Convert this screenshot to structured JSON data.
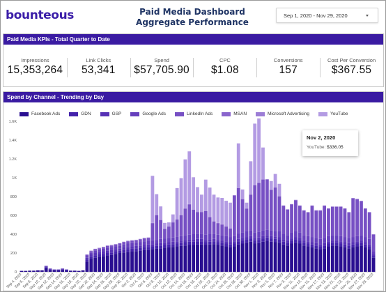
{
  "header": {
    "logo": "bounteous",
    "title_line1": "Paid Media Dashboard",
    "title_line2": "Aggregate Performance",
    "date_range": "Sep 1, 2020 - Nov 29, 2020"
  },
  "kpis": {
    "section_title": "Paid Media KPIs - Total Quarter to Date",
    "items": [
      {
        "label": "Impressions",
        "value": "15,353,264"
      },
      {
        "label": "Link Clicks",
        "value": "53,341"
      },
      {
        "label": "Spend",
        "value": "$57,705.90"
      },
      {
        "label": "CPC",
        "value": "$1.08"
      },
      {
        "label": "Conversions",
        "value": "157"
      },
      {
        "label": "Cost Per Conversion",
        "value": "$367.55"
      }
    ]
  },
  "chart_section_title": "Spend by Channel - Trending by Day",
  "tooltip": {
    "date": "Nov 2, 2020",
    "series": "YouTube:",
    "value": "$336.05"
  },
  "colors": {
    "brand": "#3a1ba2",
    "series": [
      "#2a0f91",
      "#4423ab",
      "#5732b6",
      "#6640bd",
      "#7750c4",
      "#8a65cd",
      "#9c7dd6",
      "#b39be3"
    ]
  },
  "chart_data": {
    "type": "bar",
    "stacked": true,
    "title": "",
    "xlabel": "",
    "ylabel": "",
    "ylim": [
      0,
      1600
    ],
    "y_ticks": [
      0,
      200,
      400,
      600,
      800,
      1000,
      1200,
      1400,
      1600
    ],
    "y_tick_labels": [
      "0",
      "200",
      "400",
      "600",
      "800",
      "1K",
      "1.2K",
      "1.4K",
      "1.6K"
    ],
    "legend_position": "top",
    "grid": false,
    "categories": [
      "Sep 4, 2020",
      "Sep 5, 2020",
      "Sep 6, 2020",
      "Sep 7, 2020",
      "Sep 8, 2020",
      "Sep 9, 2020",
      "Sep 10, 2020",
      "Sep 11, 2020",
      "Sep 12, 2020",
      "Sep 13, 2020",
      "Sep 14, 2020",
      "Sep 15, 2020",
      "Sep 16, 2020",
      "Sep 17, 2020",
      "Sep 18, 2020",
      "Sep 19, 2020",
      "Sep 20, 2020",
      "Sep 21, 2020",
      "Sep 22, 2020",
      "Sep 23, 2020",
      "Sep 24, 2020",
      "Sep 25, 2020",
      "Sep 26, 2020",
      "Sep 27, 2020",
      "Sep 28, 2020",
      "Sep 29, 2020",
      "Sep 30, 2020",
      "Oct 1, 2020",
      "Oct 2, 2020",
      "Oct 3, 2020",
      "Oct 4, 2020",
      "Oct 5, 2020",
      "Oct 6, 2020",
      "Oct 7, 2020",
      "Oct 8, 2020",
      "Oct 9, 2020",
      "Oct 10, 2020",
      "Oct 11, 2020",
      "Oct 12, 2020",
      "Oct 13, 2020",
      "Oct 14, 2020",
      "Oct 15, 2020",
      "Oct 16, 2020",
      "Oct 17, 2020",
      "Oct 18, 2020",
      "Oct 19, 2020",
      "Oct 20, 2020",
      "Oct 21, 2020",
      "Oct 22, 2020",
      "Oct 23, 2020",
      "Oct 24, 2020",
      "Oct 25, 2020",
      "Oct 26, 2020",
      "Oct 27, 2020",
      "Oct 28, 2020",
      "Oct 29, 2020",
      "Oct 30, 2020",
      "Oct 31, 2020",
      "Nov 1, 2020",
      "Nov 2, 2020",
      "Nov 3, 2020",
      "Nov 4, 2020",
      "Nov 5, 2020",
      "Nov 6, 2020",
      "Nov 7, 2020",
      "Nov 8, 2020",
      "Nov 9, 2020",
      "Nov 10, 2020",
      "Nov 11, 2020",
      "Nov 12, 2020",
      "Nov 13, 2020",
      "Nov 14, 2020",
      "Nov 15, 2020",
      "Nov 16, 2020",
      "Nov 17, 2020",
      "Nov 18, 2020",
      "Nov 19, 2020",
      "Nov 20, 2020",
      "Nov 21, 2020",
      "Nov 22, 2020",
      "Nov 23, 2020",
      "Nov 24, 2020",
      "Nov 25, 2020",
      "Nov 26, 2020",
      "Nov 27, 2020",
      "Nov 28, 2020",
      "Nov 29, 2020"
    ],
    "x_tick_labels": [
      "Sep 4, 2020",
      "Sep 6, 2020",
      "Sep 8, 2020",
      "Sep 10, 2020",
      "Sep 12, 2020",
      "Sep 14, 2020",
      "Sep 16, 2020",
      "Sep 18, 2020",
      "Sep 20, 2020",
      "Sep 22, 2020",
      "Sep 24, 2020",
      "Sep 26, 2020",
      "Sep 28, 2020",
      "Sep 30, 2020",
      "Oct 2, 2020",
      "Oct 4, 2020",
      "Oct 6, 2020",
      "Oct 8, 2020",
      "Oct 10, 2020",
      "Oct 12, 2020",
      "Oct 14, 2020",
      "Oct 16, 2020",
      "Oct 18, 2020",
      "Oct 20, 2020",
      "Oct 22, 2020",
      "Oct 24, 2020",
      "Oct 26, 2020",
      "Oct 28, 2020",
      "Oct 30, 2020",
      "Nov 1, 2020",
      "Nov 3, 2020",
      "Nov 5, 2020",
      "Nov 7, 2020",
      "Nov 9, 2020",
      "Nov 11, 2020",
      "Nov 13, 2020",
      "Nov 15, 2020",
      "Nov 17, 2020",
      "Nov 19, 2020",
      "Nov 21, 2020",
      "Nov 23, 2020",
      "Nov 25, 2020",
      "Nov 27, 2020",
      "Nov 29, 2020"
    ],
    "series": [
      {
        "name": "Facebook Ads",
        "values": [
          10,
          10,
          12,
          12,
          15,
          15,
          40,
          20,
          15,
          15,
          20,
          15,
          12,
          12,
          10,
          15,
          110,
          140,
          150,
          160,
          165,
          175,
          180,
          190,
          200,
          205,
          210,
          215,
          220,
          225,
          230,
          235,
          240,
          245,
          250,
          255,
          260,
          265,
          270,
          275,
          280,
          285,
          285,
          290,
          290,
          285,
          290,
          295,
          285,
          280,
          270,
          260,
          270,
          290,
          300,
          310,
          320,
          300,
          305,
          320,
          330,
          320,
          315,
          310,
          290,
          280,
          300,
          310,
          300,
          280,
          270,
          260,
          250,
          240,
          250,
          270,
          280,
          280,
          270,
          260,
          250,
          260,
          270,
          280,
          260,
          240,
          150
        ]
      },
      {
        "name": "GDN",
        "values": [
          0,
          0,
          0,
          0,
          0,
          0,
          10,
          5,
          5,
          5,
          5,
          5,
          0,
          0,
          0,
          0,
          20,
          20,
          25,
          25,
          25,
          25,
          25,
          25,
          25,
          30,
          30,
          30,
          30,
          30,
          30,
          30,
          30,
          30,
          30,
          30,
          30,
          30,
          30,
          30,
          35,
          35,
          35,
          35,
          35,
          30,
          30,
          30,
          30,
          30,
          30,
          30,
          30,
          35,
          35,
          35,
          35,
          35,
          35,
          35,
          35,
          35,
          35,
          35,
          30,
          30,
          30,
          35,
          35,
          30,
          30,
          30,
          30,
          30,
          30,
          30,
          30,
          30,
          30,
          30,
          30,
          30,
          30,
          30,
          30,
          30,
          20
        ]
      },
      {
        "name": "GSP",
        "values": [
          0,
          0,
          0,
          0,
          0,
          0,
          8,
          5,
          5,
          5,
          5,
          5,
          0,
          0,
          0,
          0,
          20,
          25,
          25,
          25,
          25,
          25,
          25,
          25,
          25,
          25,
          25,
          25,
          25,
          25,
          25,
          25,
          25,
          25,
          25,
          25,
          25,
          25,
          25,
          25,
          25,
          25,
          25,
          25,
          25,
          25,
          25,
          25,
          25,
          25,
          25,
          25,
          25,
          25,
          25,
          25,
          25,
          25,
          25,
          25,
          25,
          25,
          25,
          25,
          25,
          25,
          25,
          25,
          25,
          25,
          25,
          25,
          25,
          25,
          25,
          25,
          25,
          25,
          25,
          25,
          25,
          25,
          25,
          25,
          25,
          25,
          15
        ]
      },
      {
        "name": "Google Ads",
        "values": [
          0,
          0,
          0,
          0,
          0,
          0,
          5,
          5,
          0,
          0,
          5,
          0,
          0,
          0,
          0,
          0,
          20,
          20,
          25,
          25,
          30,
          30,
          30,
          30,
          30,
          30,
          35,
          35,
          35,
          35,
          40,
          40,
          40,
          40,
          45,
          45,
          45,
          45,
          50,
          50,
          50,
          50,
          55,
          55,
          55,
          55,
          55,
          55,
          55,
          55,
          55,
          55,
          55,
          60,
          60,
          60,
          60,
          60,
          60,
          60,
          60,
          60,
          60,
          60,
          55,
          55,
          60,
          60,
          60,
          55,
          55,
          55,
          55,
          55,
          55,
          55,
          55,
          55,
          55,
          55,
          55,
          55,
          55,
          55,
          55,
          55,
          30
        ]
      },
      {
        "name": "LinkedIn Ads",
        "values": [
          0,
          0,
          0,
          0,
          0,
          0,
          0,
          0,
          0,
          0,
          0,
          0,
          0,
          0,
          0,
          0,
          10,
          15,
          15,
          15,
          15,
          20,
          20,
          20,
          20,
          25,
          25,
          25,
          25,
          30,
          30,
          30,
          180,
          260,
          200,
          100,
          120,
          160,
          180,
          220,
          280,
          320,
          260,
          230,
          230,
          250,
          180,
          130,
          120,
          110,
          100,
          90,
          430,
          480,
          350,
          240,
          380,
          500,
          520,
          540,
          530,
          430,
          460,
          370,
          300,
          270,
          300,
          330,
          280,
          260,
          250,
          330,
          290,
          300,
          340,
          290,
          300,
          300,
          310,
          300,
          270,
          410,
          390,
          360,
          300,
          280,
          180
        ]
      },
      {
        "name": "MSAN",
        "values": [
          0,
          0,
          0,
          0,
          0,
          0,
          0,
          0,
          0,
          0,
          0,
          0,
          0,
          0,
          0,
          0,
          0,
          0,
          0,
          0,
          0,
          0,
          0,
          0,
          0,
          0,
          0,
          0,
          0,
          0,
          0,
          0,
          0,
          0,
          0,
          0,
          0,
          0,
          0,
          0,
          0,
          0,
          0,
          0,
          0,
          0,
          0,
          0,
          0,
          0,
          0,
          0,
          0,
          0,
          0,
          0,
          0,
          0,
          0,
          0,
          0,
          0,
          0,
          0,
          0,
          0,
          0,
          0,
          0,
          0,
          0,
          0,
          0,
          0,
          0,
          0,
          0,
          0,
          0,
          0,
          0,
          0,
          0,
          0,
          0,
          0,
          0
        ]
      },
      {
        "name": "Microsoft Advertising",
        "values": [
          0,
          0,
          0,
          0,
          0,
          0,
          0,
          0,
          0,
          0,
          0,
          0,
          0,
          0,
          0,
          0,
          5,
          5,
          5,
          5,
          5,
          5,
          5,
          5,
          5,
          5,
          5,
          5,
          5,
          5,
          5,
          5,
          5,
          5,
          5,
          5,
          5,
          5,
          5,
          5,
          5,
          5,
          5,
          5,
          5,
          5,
          5,
          5,
          5,
          5,
          5,
          5,
          5,
          5,
          5,
          5,
          5,
          5,
          5,
          5,
          5,
          5,
          5,
          5,
          5,
          5,
          5,
          5,
          5,
          5,
          5,
          5,
          5,
          5,
          5,
          5,
          5,
          5,
          5,
          5,
          5,
          5,
          5,
          5,
          5,
          5,
          5
        ]
      },
      {
        "name": "YouTube",
        "values": [
          0,
          0,
          0,
          0,
          0,
          0,
          0,
          0,
          0,
          0,
          0,
          0,
          0,
          0,
          0,
          0,
          0,
          0,
          0,
          0,
          0,
          0,
          0,
          0,
          0,
          0,
          0,
          0,
          0,
          0,
          0,
          0,
          500,
          220,
          140,
          60,
          40,
          80,
          330,
          390,
          520,
          560,
          340,
          260,
          180,
          330,
          310,
          280,
          270,
          280,
          270,
          270,
          0,
          470,
          100,
          60,
          350,
          650,
          680,
          336,
          0,
          90,
          140,
          130,
          0,
          0,
          0,
          0,
          0,
          0,
          0,
          0,
          0,
          0,
          0,
          0,
          0,
          0,
          0,
          0,
          0,
          0,
          0,
          0,
          0,
          0,
          0
        ]
      }
    ]
  }
}
